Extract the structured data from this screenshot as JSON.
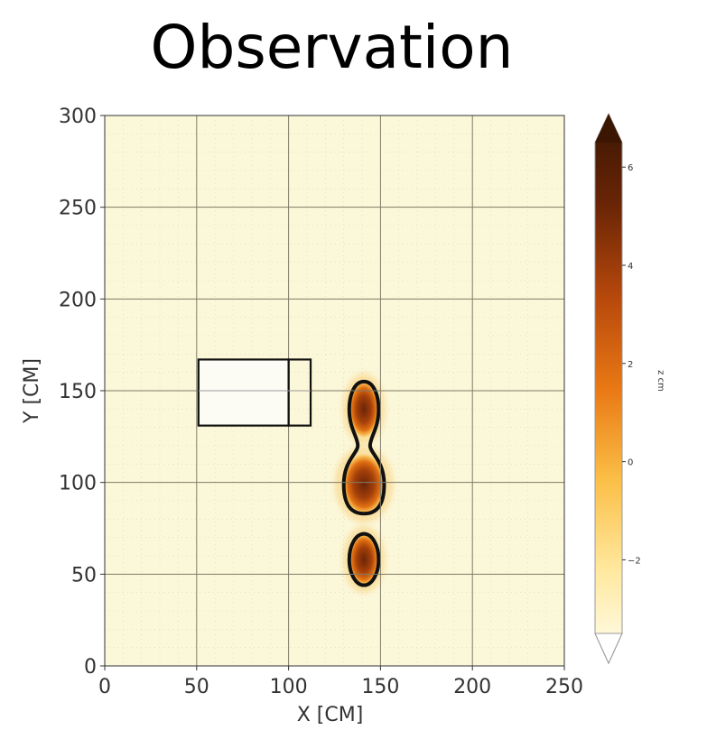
{
  "title": "Observation",
  "chart_data": {
    "type": "heatmap",
    "title": "Observation",
    "xlabel": "X [CM]",
    "ylabel": "Y [CM]",
    "xlim": [
      0,
      250
    ],
    "ylim": [
      0,
      300
    ],
    "xticks": [
      0,
      50,
      100,
      150,
      200,
      250
    ],
    "yticks": [
      0,
      50,
      100,
      150,
      200,
      250,
      300
    ],
    "grid": true,
    "colorbar": {
      "label": "z cm",
      "ticks": [
        6,
        4,
        2,
        0,
        -2
      ],
      "range": [
        -3.5,
        6.5
      ],
      "colormap": "YlOrBr",
      "extend": "both",
      "colors": [
        "#fffef2",
        "#ffe9a0",
        "#fbbf47",
        "#e97814",
        "#b6480c",
        "#6a2506",
        "#3a1603"
      ]
    },
    "rectangles": [
      {
        "x0": 51,
        "x1": 100,
        "y0": 131,
        "y1": 167
      },
      {
        "x0": 100,
        "x1": 112,
        "y0": 131,
        "y1": 167
      }
    ],
    "blobs": [
      {
        "cx": 141,
        "cy": 140,
        "rx": 8,
        "ry": 15,
        "peak": 6
      },
      {
        "cx": 141,
        "cy": 99,
        "rx": 11,
        "ry": 16,
        "peak": 6
      },
      {
        "cx": 141,
        "cy": 58,
        "rx": 8,
        "ry": 14,
        "peak": 6
      }
    ],
    "background_color": "#fbf7d9"
  }
}
